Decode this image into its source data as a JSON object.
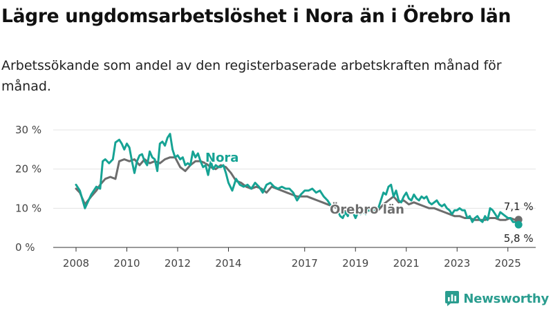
{
  "header": {
    "title": "Lägre ungdomsarbetslöshet i Nora än i Örebro län",
    "subtitle": "Arbetssökande som andel av den registerbaserade arbetskraften månad för månad."
  },
  "brand": {
    "name": "Newsworthy",
    "icon": "bar-chart-icon",
    "color": "#2a9d8f"
  },
  "chart_data": {
    "type": "line",
    "x_unit": "year",
    "xlim": [
      2007.5,
      2025.8
    ],
    "ylim": [
      0,
      30
    ],
    "y_ticks": [
      0,
      10,
      20,
      30
    ],
    "y_tick_labels": [
      "0 %",
      "10 %",
      "20 %",
      "30 %"
    ],
    "x_ticks": [
      2008,
      2010,
      2012,
      2014,
      2017,
      2019,
      2021,
      2023,
      2025
    ],
    "x_tick_labels": [
      "2008",
      "2010",
      "2012",
      "2014",
      "2017",
      "2019",
      "2021",
      "2023",
      "2025"
    ],
    "grid": "horizontal",
    "legend": "inline labels",
    "series": [
      {
        "name": "Nora",
        "color": "#16a394",
        "end_label": "5,8 %",
        "x": [
          2008.0,
          2008.15,
          2008.35,
          2008.6,
          2008.8,
          2008.95,
          2009.05,
          2009.15,
          2009.3,
          2009.45,
          2009.55,
          2009.7,
          2009.8,
          2009.9,
          2010.0,
          2010.1,
          2010.2,
          2010.3,
          2010.4,
          2010.5,
          2010.6,
          2010.7,
          2010.8,
          2010.9,
          2011.0,
          2011.1,
          2011.2,
          2011.3,
          2011.4,
          2011.5,
          2011.6,
          2011.7,
          2011.8,
          2011.9,
          2012.0,
          2012.1,
          2012.2,
          2012.3,
          2012.4,
          2012.5,
          2012.6,
          2012.7,
          2012.8,
          2012.9,
          2013.0,
          2013.1,
          2013.2,
          2013.3,
          2013.4,
          2013.5,
          2013.6,
          2013.7,
          2013.8,
          2013.9,
          2014.0,
          2014.15,
          2014.3,
          2014.45,
          2014.6,
          2014.75,
          2014.9,
          2015.05,
          2015.2,
          2015.35,
          2015.5,
          2015.65,
          2015.8,
          2015.95,
          2016.1,
          2016.25,
          2016.4,
          2016.55,
          2016.7,
          2016.85,
          2017.0,
          2017.15,
          2017.3,
          2017.45,
          2017.6,
          2017.75,
          2017.9,
          2018.0,
          2018.1,
          2018.2,
          2018.3,
          2018.4,
          2018.5,
          2018.6,
          2018.7,
          2018.8,
          2018.9,
          2019.0,
          2019.1,
          2019.2,
          2019.3,
          2019.4,
          2019.5,
          2019.6,
          2019.7,
          2019.8,
          2019.9,
          2020.0,
          2020.1,
          2020.2,
          2020.3,
          2020.4,
          2020.5,
          2020.6,
          2020.7,
          2020.8,
          2020.9,
          2021.0,
          2021.1,
          2021.2,
          2021.3,
          2021.4,
          2021.5,
          2021.6,
          2021.7,
          2021.8,
          2021.9,
          2022.0,
          2022.1,
          2022.2,
          2022.3,
          2022.4,
          2022.5,
          2022.6,
          2022.7,
          2022.8,
          2022.9,
          2023.0,
          2023.1,
          2023.2,
          2023.3,
          2023.4,
          2023.5,
          2023.6,
          2023.7,
          2023.8,
          2023.9,
          2024.0,
          2024.1,
          2024.2,
          2024.3,
          2024.4,
          2024.5,
          2024.6,
          2024.7,
          2024.8,
          2024.9,
          2025.0,
          2025.1,
          2025.2,
          2025.3,
          2025.42
        ],
        "values": [
          16.0,
          14.5,
          10.0,
          13.5,
          15.5,
          15.0,
          22.0,
          22.5,
          21.5,
          22.5,
          26.8,
          27.5,
          26.5,
          25.0,
          26.5,
          25.5,
          22.0,
          19.0,
          22.0,
          23.5,
          23.8,
          22.0,
          21.0,
          24.5,
          23.0,
          22.5,
          19.5,
          26.5,
          27.0,
          26.0,
          28.0,
          29.0,
          25.0,
          23.0,
          23.5,
          22.5,
          23.0,
          21.0,
          21.5,
          21.0,
          24.5,
          23.0,
          24.0,
          22.0,
          20.5,
          21.0,
          18.5,
          22.0,
          20.0,
          21.0,
          20.5,
          20.5,
          21.0,
          19.0,
          16.5,
          14.5,
          17.5,
          16.0,
          15.5,
          16.0,
          15.0,
          16.5,
          15.5,
          14.0,
          16.0,
          16.5,
          15.5,
          15.0,
          15.5,
          15.0,
          15.0,
          14.0,
          12.0,
          13.5,
          14.5,
          14.5,
          15.0,
          14.0,
          14.5,
          13.0,
          12.0,
          11.0,
          10.0,
          11.5,
          9.5,
          8.0,
          7.5,
          9.0,
          8.0,
          10.0,
          9.0,
          7.5,
          9.0,
          8.5,
          9.0,
          8.5,
          9.5,
          9.5,
          9.5,
          10.0,
          10.0,
          12.0,
          14.0,
          13.5,
          15.5,
          16.0,
          13.0,
          14.5,
          12.0,
          11.5,
          13.0,
          14.0,
          12.5,
          12.0,
          13.5,
          12.5,
          12.0,
          13.0,
          12.5,
          13.0,
          11.5,
          11.0,
          11.5,
          12.0,
          11.0,
          10.5,
          11.0,
          10.0,
          9.5,
          8.5,
          9.5,
          9.5,
          10.0,
          9.5,
          9.5,
          7.5,
          8.0,
          6.5,
          7.5,
          8.0,
          7.0,
          6.5,
          8.0,
          7.0,
          10.0,
          9.5,
          8.5,
          7.5,
          9.0,
          8.5,
          8.0,
          7.5,
          7.5,
          6.5,
          6.5,
          5.8
        ]
      },
      {
        "name": "Örebro län",
        "color": "#6d6d6d",
        "end_label": "7,1 %",
        "x": [
          2008.0,
          2008.15,
          2008.35,
          2008.6,
          2008.8,
          2008.95,
          2009.15,
          2009.35,
          2009.55,
          2009.7,
          2009.9,
          2010.1,
          2010.3,
          2010.5,
          2010.7,
          2010.9,
          2011.1,
          2011.3,
          2011.5,
          2011.7,
          2011.9,
          2012.1,
          2012.3,
          2012.5,
          2012.7,
          2012.9,
          2013.1,
          2013.3,
          2013.5,
          2013.7,
          2013.9,
          2014.1,
          2014.3,
          2014.5,
          2014.7,
          2014.9,
          2015.1,
          2015.3,
          2015.5,
          2015.7,
          2015.9,
          2016.1,
          2016.3,
          2016.5,
          2016.7,
          2016.9,
          2017.1,
          2017.3,
          2017.5,
          2017.7,
          2017.9,
          2018.1,
          2018.3,
          2018.5,
          2018.7,
          2018.9,
          2019.1,
          2019.3,
          2019.5,
          2019.7,
          2019.9,
          2020.1,
          2020.3,
          2020.5,
          2020.7,
          2020.9,
          2021.1,
          2021.3,
          2021.5,
          2021.7,
          2021.9,
          2022.1,
          2022.3,
          2022.5,
          2022.7,
          2022.9,
          2023.1,
          2023.3,
          2023.5,
          2023.7,
          2023.9,
          2024.1,
          2024.3,
          2024.5,
          2024.7,
          2024.9,
          2025.1,
          2025.3,
          2025.42
        ],
        "values": [
          15.0,
          14.0,
          11.0,
          13.0,
          14.5,
          16.0,
          17.5,
          18.0,
          17.5,
          22.0,
          22.5,
          22.0,
          22.5,
          21.0,
          22.5,
          21.5,
          22.0,
          21.5,
          22.5,
          23.0,
          23.0,
          20.5,
          19.5,
          21.0,
          22.0,
          22.0,
          21.5,
          20.5,
          20.0,
          21.0,
          20.5,
          19.0,
          17.0,
          16.5,
          15.5,
          15.0,
          15.5,
          15.0,
          14.0,
          15.5,
          15.0,
          14.5,
          14.0,
          13.5,
          13.0,
          13.0,
          13.0,
          12.5,
          12.0,
          11.5,
          11.0,
          10.5,
          10.0,
          9.5,
          9.0,
          9.5,
          9.0,
          9.0,
          9.5,
          9.0,
          9.5,
          11.0,
          12.0,
          13.0,
          11.5,
          12.0,
          11.0,
          11.5,
          11.0,
          10.5,
          10.0,
          10.0,
          9.5,
          9.0,
          8.5,
          8.0,
          8.0,
          7.5,
          7.5,
          7.0,
          7.0,
          7.0,
          7.5,
          7.5,
          7.0,
          7.0,
          7.5,
          7.0,
          7.1
        ]
      }
    ]
  }
}
